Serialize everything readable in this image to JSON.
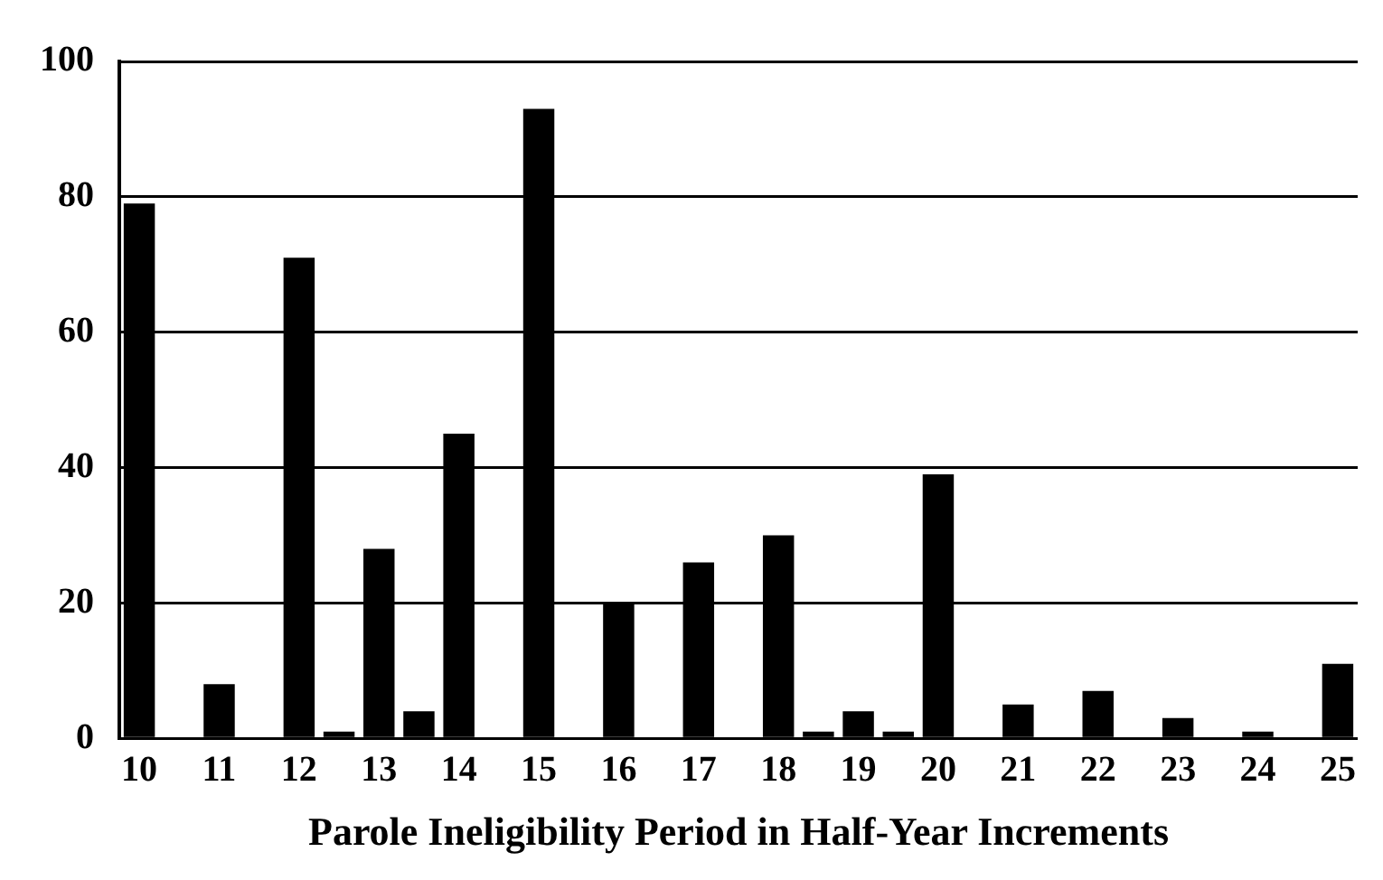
{
  "chart_data": {
    "type": "bar",
    "xlabel": "Parole Ineligibility Period in Half-Year Increments",
    "categories": [
      "10",
      null,
      "11",
      null,
      "12",
      null,
      "13",
      null,
      "14",
      null,
      "15",
      null,
      "16",
      null,
      "17",
      null,
      "18",
      null,
      "19",
      null,
      "20",
      null,
      "21",
      null,
      "22",
      null,
      "23",
      null,
      "24",
      null,
      "25"
    ],
    "values": [
      79,
      0,
      8,
      0,
      71,
      1,
      28,
      4,
      45,
      0,
      93,
      0,
      20,
      0,
      26,
      0,
      30,
      1,
      4,
      1,
      39,
      0,
      5,
      0,
      7,
      0,
      3,
      0,
      1,
      0,
      11
    ],
    "color": "#000000",
    "ylim": [
      0,
      100
    ],
    "yticks": [
      0,
      20,
      40,
      60,
      80,
      100
    ],
    "grid": "y",
    "legend": false
  }
}
